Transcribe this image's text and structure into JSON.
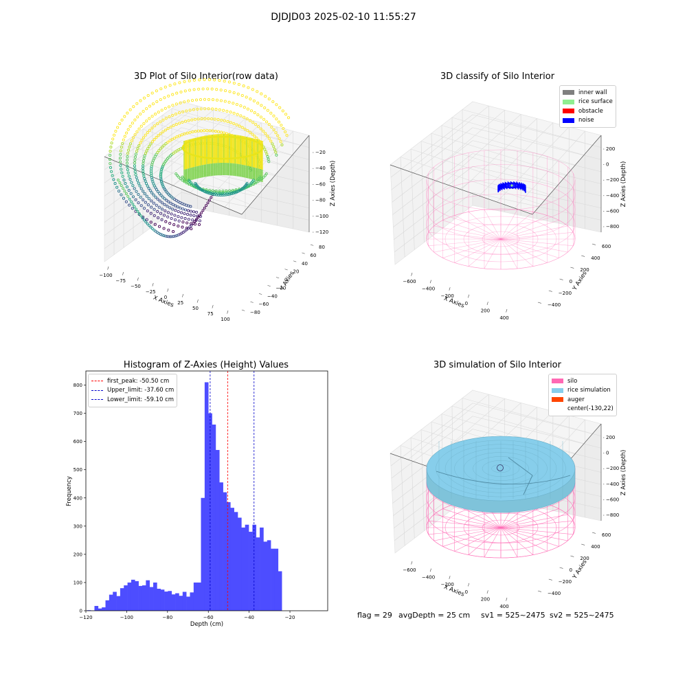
{
  "suptitle": "DJDJD03 2025-02-10 11:55:27",
  "footer": {
    "flag": "flag = 29",
    "avg_depth": "avgDepth = 25 cm",
    "sv1": "sv1 = 525~2475",
    "sv2": "sv2 = 525~2475"
  },
  "colors": {
    "histogram_bar": "#4d4dff",
    "first_peak_line": "#ff0000",
    "limit_lines": "#0000cc",
    "inner_wall": "#808080",
    "rice_surface": "#90ee90",
    "obstacle": "#ff0000",
    "noise": "#0000ff",
    "silo": "#ff69b4",
    "rice_simulation": "#87ceeb",
    "auger": "#ff4500"
  },
  "chart_data": [
    {
      "type": "scatter3d",
      "title": "3D Plot of Silo Interior(row data)",
      "xlabel": "X Axies",
      "ylabel": "Y Axies",
      "zlabel": "Z Axies (Depth)",
      "x_ticks": [
        "−100",
        "−75",
        "−50",
        "−25",
        "0",
        "25",
        "50",
        "75",
        "100"
      ],
      "y_ticks": [
        "−80",
        "−60",
        "−40",
        "−20",
        "0",
        "20",
        "40",
        "60",
        "80"
      ],
      "z_ticks": [
        "−120",
        "−100",
        "−80",
        "−60",
        "−40",
        "−20"
      ],
      "xlim": [
        -100,
        100
      ],
      "ylim": [
        -80,
        80
      ],
      "zlim": [
        -125,
        -10
      ],
      "colormap": "viridis",
      "grid": true
    },
    {
      "type": "scatter3d",
      "title": "3D classify of Silo Interior",
      "xlabel": "X Axies",
      "ylabel": "Y Axies",
      "zlabel": "Z Axies (Depth)",
      "x_ticks": [
        "−600",
        "−400",
        "−200",
        "0",
        "200",
        "400"
      ],
      "y_ticks": [
        "−400",
        "−200",
        "0",
        "200",
        "400",
        "600"
      ],
      "z_ticks": [
        "−800",
        "−600",
        "−400",
        "−200",
        "0",
        "200"
      ],
      "legend": [
        "inner wall",
        "rice surface",
        "obstacle",
        "noise"
      ],
      "legend_position": "upper-right",
      "grid": true
    },
    {
      "type": "bar",
      "title": "Histogram of Z-Axies (Height) Values",
      "xlabel": "Depth (cm)",
      "ylabel": "Frequency",
      "xlim": [
        -120,
        -1.5
      ],
      "ylim": [
        0,
        850
      ],
      "x_ticks": [
        -120,
        -100,
        -80,
        -60,
        -40,
        -20
      ],
      "x_tick_labels": [
        "−120",
        "−100",
        "−80",
        "−60",
        "−40",
        "−20"
      ],
      "y_ticks": [
        0,
        100,
        200,
        300,
        400,
        500,
        600,
        700,
        800
      ],
      "bin_start": -119.4,
      "bin_width": 1.8,
      "values": [
        2,
        1,
        17,
        8,
        12,
        37,
        57,
        67,
        52,
        80,
        90,
        100,
        110,
        105,
        88,
        90,
        108,
        84,
        100,
        78,
        75,
        68,
        70,
        58,
        62,
        53,
        67,
        50,
        65,
        100,
        100,
        400,
        810,
        700,
        660,
        570,
        455,
        420,
        385,
        365,
        350,
        330,
        295,
        305,
        280,
        305,
        260,
        295,
        245,
        250,
        220,
        220,
        140
      ],
      "vlines": [
        {
          "x": -50.5,
          "style": "dashed",
          "color": "red",
          "label": "first_peak: -50.50 cm"
        },
        {
          "x": -37.6,
          "style": "dashed",
          "color": "blue",
          "label": "Upper_limit: -37.60 cm"
        },
        {
          "x": -59.1,
          "style": "dashed",
          "color": "blue",
          "label": "Lower_limit: -59.10 cm"
        }
      ],
      "legend_position": "upper-left",
      "grid": false
    },
    {
      "type": "surface3d",
      "title": "3D simulation of Silo Interior",
      "xlabel": "X Axies",
      "ylabel": "Y Axies",
      "zlabel": "Z Axies (Depth)",
      "x_ticks": [
        "−600",
        "−400",
        "−200",
        "0",
        "200",
        "400"
      ],
      "y_ticks": [
        "−400",
        "−200",
        "0",
        "200",
        "400",
        "600"
      ],
      "z_ticks": [
        "−800",
        "−600",
        "−400",
        "−200",
        "0",
        "200"
      ],
      "legend": [
        "silo",
        "rice simulation",
        "auger",
        "center(-130,22)"
      ],
      "legend_position": "upper-right",
      "grid": true
    }
  ]
}
